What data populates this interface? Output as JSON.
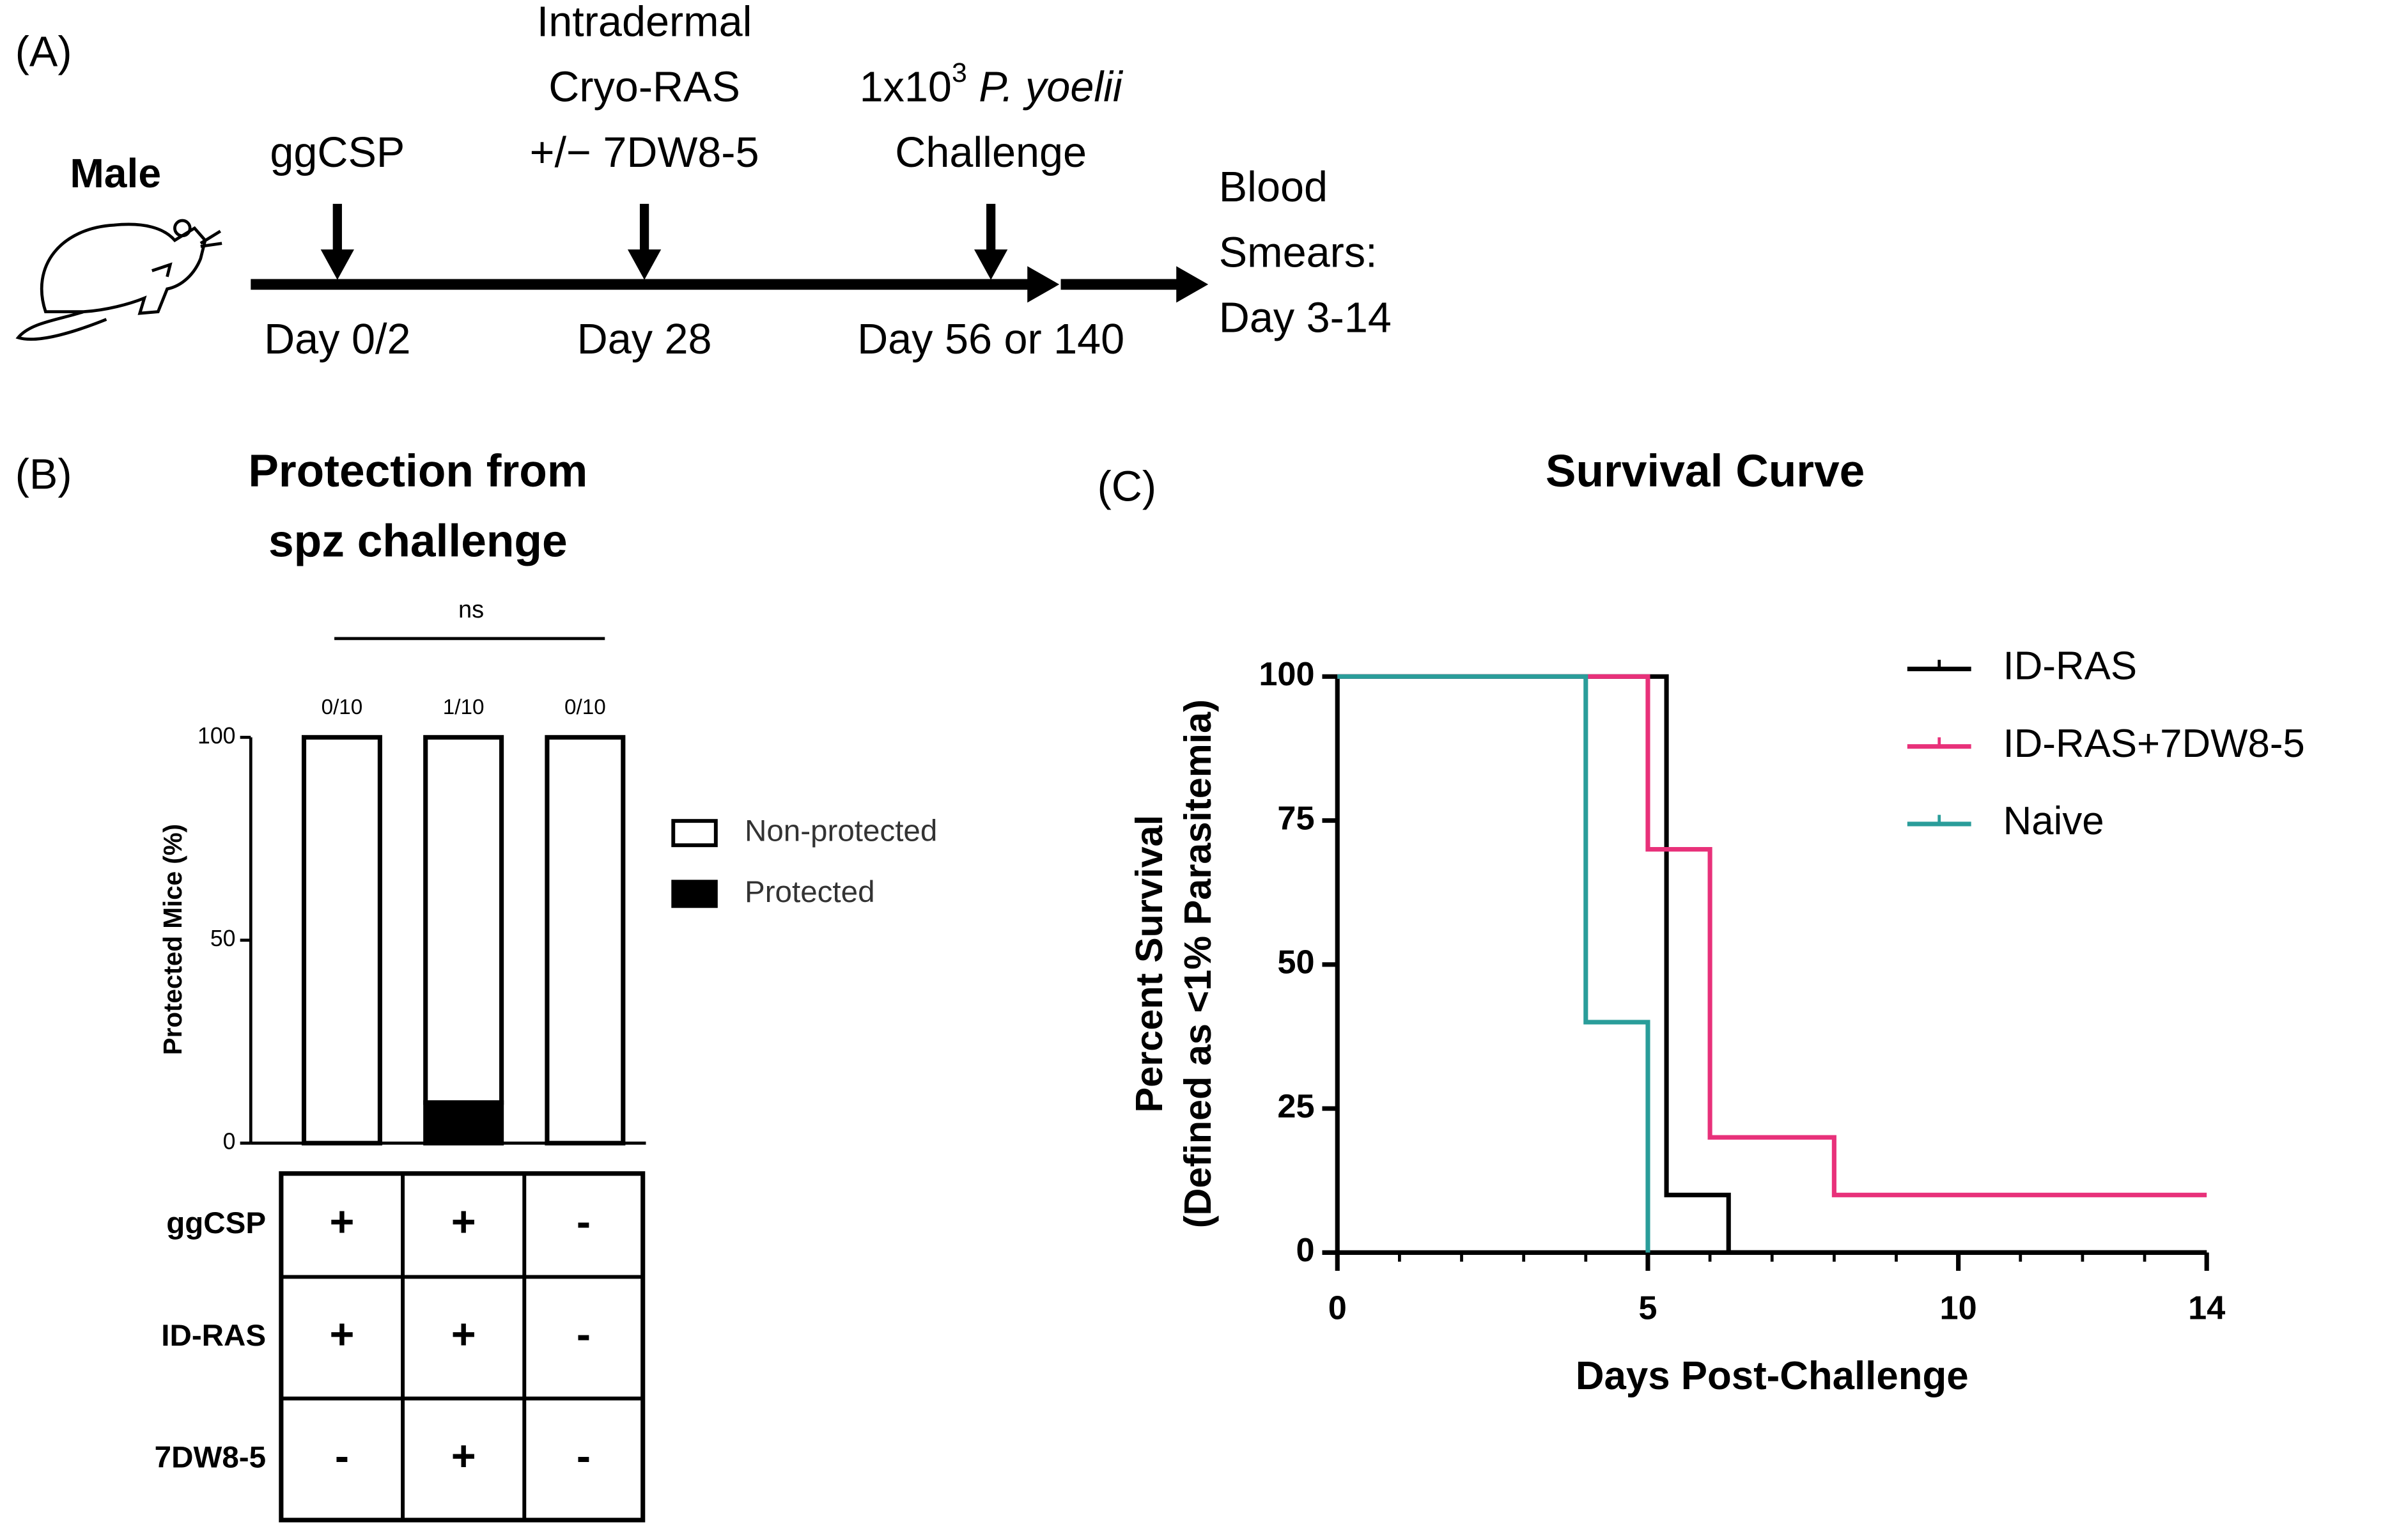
{
  "panel_a": {
    "label": "(A)",
    "subject": "Male",
    "events": [
      {
        "above": [
          [
            {
              "text": "ggCSP"
            }
          ]
        ],
        "below": "Day 0/2"
      },
      {
        "above": [
          [
            {
              "text": "Intradermal"
            }
          ],
          [
            {
              "text": "Cryo-RAS"
            }
          ],
          [
            {
              "text": "+/− 7DW8-5"
            }
          ]
        ],
        "below": "Day 28"
      },
      {
        "above": [
          [
            {
              "text": "1x10"
            },
            {
              "text": "3",
              "sup": true
            },
            {
              "text": " P. yoelii",
              "italic": true
            }
          ],
          [
            {
              "text": "Challenge"
            }
          ]
        ],
        "below": "Day 56 or 140"
      }
    ],
    "endpoint": [
      "Blood",
      "Smears:",
      "Day 3-14"
    ]
  },
  "chart_data": [
    {
      "type": "bar",
      "stacked": true,
      "label": "(B)",
      "title": [
        "Protection from",
        "spz challenge"
      ],
      "ylabel": "Protected Mice (%)",
      "categories": [
        null,
        null,
        null
      ],
      "series": [
        {
          "name": "Protected",
          "color": "#000000",
          "values": [
            0,
            10,
            0
          ]
        },
        {
          "name": "Non-protected",
          "color": "#ffffff",
          "values": [
            100,
            90,
            100
          ]
        }
      ],
      "fractions": [
        "0/10",
        "1/10",
        "0/10"
      ],
      "significance": "ns",
      "ylim": [
        0,
        100
      ],
      "yticks": [
        0,
        50,
        100
      ],
      "legend": "right",
      "table": {
        "rows": [
          [
            "ggCSP",
            "+",
            "+",
            "-"
          ],
          [
            "ID-RAS",
            "+",
            "+",
            "-"
          ],
          [
            "7DW8-5",
            "-",
            "+",
            "-"
          ]
        ]
      }
    },
    {
      "type": "line",
      "step": true,
      "label": "(C)",
      "title": "Survival Curve",
      "xlabel": "Days Post-Challenge",
      "ylabel": [
        "Percent Survival",
        "(Defined as <1% Parasitemia)"
      ],
      "xlim": [
        0,
        14
      ],
      "xticks": [
        0,
        5,
        10,
        14
      ],
      "ylim": [
        0,
        100
      ],
      "yticks": [
        0,
        25,
        50,
        75,
        100
      ],
      "legend": "upper right",
      "series": [
        {
          "name": "ID-RAS",
          "color": "#000000",
          "x": [
            0,
            5.3,
            6.3,
            14
          ],
          "values": [
            100,
            10,
            0,
            0
          ]
        },
        {
          "name": "ID-RAS+7DW8-5",
          "color": "#e8317a",
          "x": [
            0,
            5,
            6,
            8,
            14
          ],
          "values": [
            100,
            70,
            20,
            10,
            10
          ]
        },
        {
          "name": "Naive",
          "color": "#2a9d9a",
          "x": [
            0,
            4,
            5
          ],
          "values": [
            100,
            40,
            0
          ]
        }
      ]
    }
  ]
}
